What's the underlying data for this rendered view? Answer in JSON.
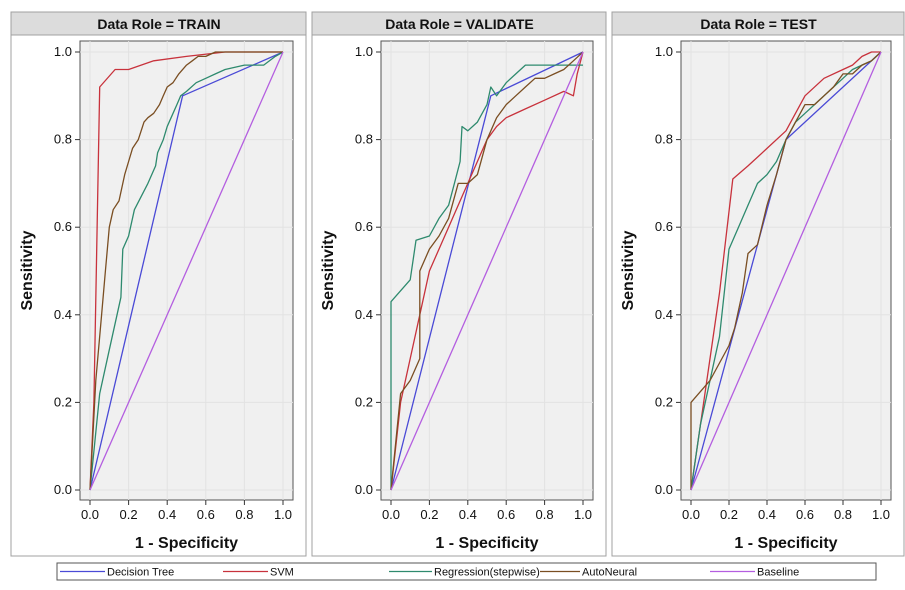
{
  "colors": {
    "decision_tree": "#4a4ad6",
    "svm": "#c8323c",
    "regression": "#2e8a6e",
    "autoneural": "#7a4e22",
    "baseline": "#b45ee0",
    "panel_header_bg": "#dcdcdc",
    "plot_bg": "#f0f0f0"
  },
  "legend": {
    "entries": [
      "Decision Tree",
      "SVM",
      "Regression(stepwise)",
      "AutoNeural",
      "Baseline"
    ],
    "placement": "bottom"
  },
  "chart_data": [
    {
      "type": "line",
      "title": "Data Role = TRAIN",
      "xlabel": "1 - Specificity",
      "ylabel": "Sensitivity",
      "xlim": [
        0,
        1
      ],
      "ylim": [
        0,
        1
      ],
      "xticks": [
        "0.0",
        "0.2",
        "0.4",
        "0.6",
        "0.8",
        "1.0"
      ],
      "yticks": [
        "0.0",
        "0.2",
        "0.4",
        "0.6",
        "0.8",
        "1.0"
      ],
      "grid": true,
      "series": [
        {
          "name": "Decision Tree",
          "color_key": "decision_tree",
          "x": [
            0,
            0.48,
            1.0
          ],
          "y": [
            0,
            0.9,
            1.0
          ]
        },
        {
          "name": "SVM",
          "color_key": "svm",
          "x": [
            0,
            0.02,
            0.05,
            0.13,
            0.2,
            0.33,
            0.5,
            0.7,
            1.0
          ],
          "y": [
            0,
            0.2,
            0.92,
            0.96,
            0.96,
            0.98,
            0.99,
            1.0,
            1.0
          ]
        },
        {
          "name": "Regression(stepwise)",
          "color_key": "regression",
          "x": [
            0,
            0.05,
            0.1,
            0.16,
            0.17,
            0.2,
            0.23,
            0.3,
            0.34,
            0.35,
            0.38,
            0.4,
            0.42,
            0.45,
            0.47,
            0.5,
            0.55,
            0.6,
            0.65,
            0.7,
            0.8,
            0.9,
            0.96,
            1.0
          ],
          "y": [
            0,
            0.22,
            0.32,
            0.44,
            0.55,
            0.58,
            0.64,
            0.7,
            0.74,
            0.77,
            0.8,
            0.83,
            0.85,
            0.88,
            0.9,
            0.91,
            0.93,
            0.94,
            0.95,
            0.96,
            0.97,
            0.97,
            0.99,
            1.0
          ]
        },
        {
          "name": "AutoNeural",
          "color_key": "autoneural",
          "x": [
            0,
            0.03,
            0.06,
            0.08,
            0.1,
            0.12,
            0.15,
            0.18,
            0.2,
            0.22,
            0.25,
            0.28,
            0.3,
            0.33,
            0.36,
            0.38,
            0.4,
            0.43,
            0.46,
            0.5,
            0.53,
            0.56,
            0.6,
            0.65,
            0.7,
            0.75,
            0.8,
            1.0
          ],
          "y": [
            0,
            0.25,
            0.4,
            0.5,
            0.6,
            0.64,
            0.66,
            0.72,
            0.75,
            0.78,
            0.8,
            0.84,
            0.85,
            0.86,
            0.88,
            0.9,
            0.92,
            0.93,
            0.95,
            0.97,
            0.98,
            0.99,
            0.99,
            1.0,
            1.0,
            1.0,
            1.0,
            1.0
          ]
        },
        {
          "name": "Baseline",
          "color_key": "baseline",
          "x": [
            0,
            1
          ],
          "y": [
            0,
            1
          ]
        }
      ]
    },
    {
      "type": "line",
      "title": "Data Role = VALIDATE",
      "xlabel": "1 - Specificity",
      "ylabel": "Sensitivity",
      "xlim": [
        0,
        1
      ],
      "ylim": [
        0,
        1
      ],
      "xticks": [
        "0.0",
        "0.2",
        "0.4",
        "0.6",
        "0.8",
        "1.0"
      ],
      "yticks": [
        "0.0",
        "0.2",
        "0.4",
        "0.6",
        "0.8",
        "1.0"
      ],
      "grid": true,
      "series": [
        {
          "name": "Decision Tree",
          "color_key": "decision_tree",
          "x": [
            0,
            0.52,
            1.0
          ],
          "y": [
            0,
            0.9,
            1.0
          ]
        },
        {
          "name": "SVM",
          "color_key": "svm",
          "x": [
            0,
            0.05,
            0.1,
            0.15,
            0.2,
            0.25,
            0.3,
            0.35,
            0.4,
            0.45,
            0.5,
            0.55,
            0.6,
            0.7,
            0.8,
            0.9,
            0.95,
            0.97,
            1.0
          ],
          "y": [
            0,
            0.2,
            0.3,
            0.4,
            0.5,
            0.55,
            0.6,
            0.65,
            0.7,
            0.75,
            0.8,
            0.83,
            0.85,
            0.87,
            0.89,
            0.91,
            0.9,
            0.95,
            1.0
          ]
        },
        {
          "name": "Regression(stepwise)",
          "color_key": "regression",
          "x": [
            0,
            0.0,
            0.1,
            0.13,
            0.2,
            0.25,
            0.3,
            0.33,
            0.36,
            0.37,
            0.4,
            0.45,
            0.5,
            0.52,
            0.55,
            0.6,
            0.65,
            0.7,
            0.8,
            0.9,
            1.0
          ],
          "y": [
            0,
            0.43,
            0.48,
            0.57,
            0.58,
            0.62,
            0.65,
            0.7,
            0.75,
            0.83,
            0.82,
            0.84,
            0.88,
            0.92,
            0.9,
            0.93,
            0.95,
            0.97,
            0.97,
            0.97,
            0.97
          ]
        },
        {
          "name": "AutoNeural",
          "color_key": "autoneural",
          "x": [
            0,
            0.05,
            0.1,
            0.15,
            0.15,
            0.2,
            0.25,
            0.3,
            0.35,
            0.35,
            0.4,
            0.45,
            0.5,
            0.55,
            0.6,
            0.65,
            0.7,
            0.75,
            0.8,
            0.85,
            0.9,
            0.95,
            1.0
          ],
          "y": [
            0,
            0.22,
            0.25,
            0.3,
            0.5,
            0.55,
            0.58,
            0.62,
            0.7,
            0.7,
            0.7,
            0.72,
            0.8,
            0.85,
            0.88,
            0.9,
            0.92,
            0.94,
            0.94,
            0.95,
            0.96,
            0.98,
            1.0
          ]
        },
        {
          "name": "Baseline",
          "color_key": "baseline",
          "x": [
            0,
            1
          ],
          "y": [
            0,
            1
          ]
        }
      ]
    },
    {
      "type": "line",
      "title": "Data Role = TEST",
      "xlabel": "1 - Specificity",
      "ylabel": "Sensitivity",
      "xlim": [
        0,
        1
      ],
      "ylim": [
        0,
        1
      ],
      "xticks": [
        "0.0",
        "0.2",
        "0.4",
        "0.6",
        "0.8",
        "1.0"
      ],
      "yticks": [
        "0.0",
        "0.2",
        "0.4",
        "0.6",
        "0.8",
        "1.0"
      ],
      "grid": true,
      "series": [
        {
          "name": "Decision Tree",
          "color_key": "decision_tree",
          "x": [
            0,
            0.5,
            1.0
          ],
          "y": [
            0,
            0.8,
            1.0
          ]
        },
        {
          "name": "SVM",
          "color_key": "svm",
          "x": [
            0,
            0.05,
            0.1,
            0.15,
            0.22,
            0.3,
            0.4,
            0.5,
            0.6,
            0.7,
            0.8,
            0.85,
            0.9,
            0.95,
            1.0
          ],
          "y": [
            0,
            0.15,
            0.3,
            0.45,
            0.71,
            0.74,
            0.78,
            0.82,
            0.9,
            0.94,
            0.96,
            0.97,
            0.99,
            1.0,
            1.0
          ]
        },
        {
          "name": "Regression(stepwise)",
          "color_key": "regression",
          "x": [
            0,
            0.05,
            0.1,
            0.15,
            0.2,
            0.25,
            0.3,
            0.35,
            0.4,
            0.45,
            0.5,
            0.55,
            0.6,
            0.65,
            0.7,
            0.75,
            0.8,
            0.85,
            0.9,
            0.95,
            1.0
          ],
          "y": [
            0,
            0.15,
            0.25,
            0.35,
            0.55,
            0.6,
            0.65,
            0.7,
            0.72,
            0.75,
            0.8,
            0.84,
            0.86,
            0.88,
            0.9,
            0.92,
            0.94,
            0.96,
            0.97,
            0.98,
            1.0
          ]
        },
        {
          "name": "AutoNeural",
          "color_key": "autoneural",
          "x": [
            0,
            0.0,
            0.1,
            0.2,
            0.23,
            0.27,
            0.3,
            0.35,
            0.4,
            0.45,
            0.5,
            0.55,
            0.6,
            0.65,
            0.7,
            0.75,
            0.8,
            0.85,
            0.9,
            0.95,
            1.0
          ],
          "y": [
            0,
            0.2,
            0.25,
            0.33,
            0.37,
            0.45,
            0.54,
            0.56,
            0.65,
            0.72,
            0.8,
            0.84,
            0.88,
            0.88,
            0.9,
            0.92,
            0.95,
            0.95,
            0.97,
            0.98,
            1.0
          ]
        },
        {
          "name": "Baseline",
          "color_key": "baseline",
          "x": [
            0,
            1
          ],
          "y": [
            0,
            1
          ]
        }
      ]
    }
  ]
}
